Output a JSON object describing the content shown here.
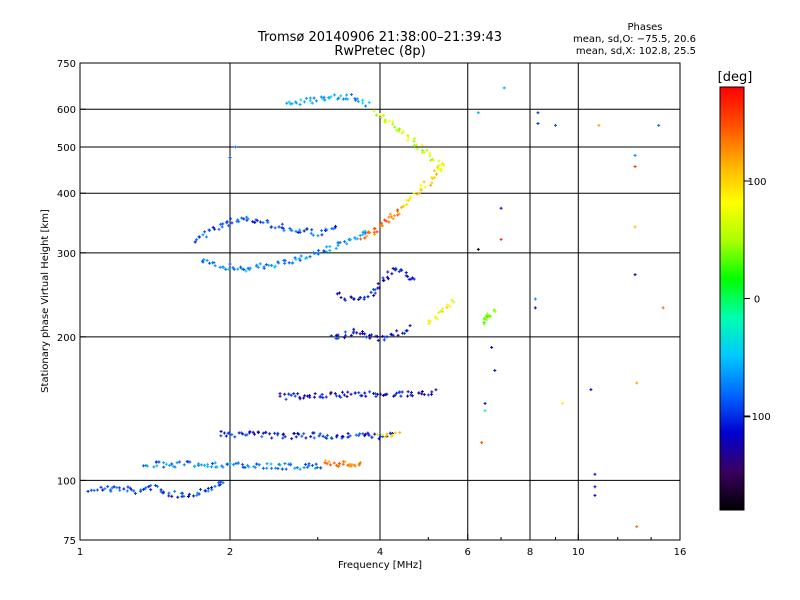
{
  "chart_data": {
    "type": "scatter",
    "title": "Tromsø 20140906 21:38:00–21:39:43",
    "subtitle": "RwPretec (8p)",
    "xlabel": "Frequency [MHz]",
    "ylabel": "Stationary phase Virtual Height [km]",
    "x_scale": "log",
    "y_scale": "log",
    "xlim": [
      1,
      16
    ],
    "ylim": [
      75,
      750
    ],
    "x_ticks": [
      1,
      2,
      4,
      6,
      8,
      10,
      16
    ],
    "x_tick_labels": [
      "1",
      "2",
      "4",
      "6",
      "8",
      "10",
      "16"
    ],
    "y_ticks": [
      75,
      100,
      200,
      300,
      400,
      500,
      600,
      750
    ],
    "y_tick_labels": [
      "75",
      "100",
      "200",
      "300",
      "400",
      "500",
      "600",
      "750"
    ],
    "grid": true,
    "phases_info": {
      "heading": "Phases",
      "line1": "mean, sd,O: −75.5, 20.6",
      "line2": "mean, sd,X: 102.8, 25.5"
    },
    "colorbar": {
      "label": "[deg]",
      "range": [
        -180,
        180
      ],
      "tick_values": [
        100,
        0,
        -100
      ],
      "tick_labels": [
        "100",
        "0",
        "−100"
      ],
      "colormap": [
        "#000000",
        "#3a0060",
        "#0000d0",
        "#0066ff",
        "#00c8ff",
        "#00ffb0",
        "#00ff00",
        "#aaff00",
        "#ffff00",
        "#ffb000",
        "#ff5000",
        "#ff0000"
      ]
    },
    "traces": [
      {
        "x": [
          1.05,
          1.2,
          1.3,
          1.4,
          1.5,
          1.6,
          1.7,
          1.8,
          1.9,
          1.95
        ],
        "y": [
          96,
          96,
          95,
          97,
          94,
          93,
          94,
          96,
          98,
          99
        ],
        "phase": -95
      },
      {
        "x": [
          1.35,
          1.5,
          1.7,
          1.9,
          2.1,
          2.4,
          2.7,
          3.0,
          3.1
        ],
        "y": [
          108,
          108,
          108,
          108,
          107,
          107,
          107,
          107,
          108
        ],
        "phase": -75
      },
      {
        "x": [
          3.1,
          3.2,
          3.3,
          3.4,
          3.5,
          3.6,
          3.7
        ],
        "y": [
          110,
          109,
          108,
          108,
          108,
          108,
          108
        ],
        "phase": 130
      },
      {
        "x": [
          1.75,
          1.9,
          2.1,
          2.4,
          2.7,
          3.0,
          3.3,
          3.5,
          3.7,
          3.8
        ],
        "y": [
          288,
          282,
          278,
          282,
          290,
          300,
          310,
          320,
          330,
          335
        ],
        "phase": -70
      },
      {
        "x": [
          3.7,
          3.8,
          3.9,
          4.0,
          4.1,
          4.2,
          4.3,
          4.4
        ],
        "y": [
          325,
          328,
          332,
          338,
          345,
          355,
          362,
          370
        ],
        "phase": 140
      },
      {
        "x": [
          4.4,
          4.6,
          4.8,
          5.0,
          5.2,
          5.3,
          5.4
        ],
        "y": [
          375,
          390,
          405,
          420,
          440,
          455,
          465
        ],
        "phase": 100
      },
      {
        "x": [
          1.7,
          1.9,
          2.1,
          2.4,
          2.7,
          3.0,
          3.3
        ],
        "y": [
          320,
          340,
          355,
          345,
          335,
          330,
          340
        ],
        "phase": -90
      },
      {
        "x": [
          2.6,
          2.9,
          3.2,
          3.5,
          3.8
        ],
        "y": [
          615,
          625,
          640,
          635,
          610
        ],
        "phase": -60
      },
      {
        "x": [
          3.9,
          4.2,
          4.6,
          5.0,
          5.4
        ],
        "y": [
          590,
          560,
          520,
          480,
          445
        ],
        "phase": 60
      },
      {
        "x": [
          3.2,
          3.4,
          3.6,
          3.8,
          4.0,
          4.2,
          4.4,
          4.6
        ],
        "y": [
          200,
          202,
          205,
          200,
          198,
          200,
          205,
          210
        ],
        "phase": -110
      },
      {
        "x": [
          3.3,
          3.5,
          3.7,
          3.9,
          4.1,
          4.3,
          4.5,
          4.7
        ],
        "y": [
          245,
          240,
          238,
          250,
          265,
          280,
          270,
          260
        ],
        "phase": -115
      },
      {
        "x": [
          5.0,
          5.3,
          5.6
        ],
        "y": [
          215,
          225,
          240
        ],
        "phase": 80
      },
      {
        "x": [
          6.4,
          6.5,
          6.6,
          6.7,
          6.8
        ],
        "y": [
          215,
          218,
          220,
          222,
          230
        ],
        "phase": 30
      },
      {
        "x": [
          2.5,
          2.8,
          3.1,
          3.4,
          3.7,
          4.0,
          4.3,
          4.6,
          4.9,
          5.2
        ],
        "y": [
          150,
          150,
          151,
          151,
          152,
          152,
          152,
          152,
          153,
          153
        ],
        "phase": -115
      },
      {
        "x": [
          1.9,
          2.2,
          2.5,
          2.8,
          3.1,
          3.4,
          3.7,
          4.0,
          4.3
        ],
        "y": [
          125,
          125,
          124,
          124,
          124,
          124,
          124,
          124,
          124
        ],
        "phase": -105
      },
      {
        "x": [
          4.0,
          4.2,
          4.4
        ],
        "y": [
          124,
          124,
          125
        ],
        "phase": 90
      }
    ],
    "scattered_points": [
      {
        "x": 2.05,
        "y": 500,
        "phase": -80
      },
      {
        "x": 2.0,
        "y": 475,
        "phase": -90
      },
      {
        "x": 6.3,
        "y": 305,
        "phase": -180
      },
      {
        "x": 7.0,
        "y": 320,
        "phase": 160
      },
      {
        "x": 7.0,
        "y": 372,
        "phase": -110
      },
      {
        "x": 8.3,
        "y": 590,
        "phase": -100
      },
      {
        "x": 8.3,
        "y": 560,
        "phase": -100
      },
      {
        "x": 9.0,
        "y": 555,
        "phase": -90
      },
      {
        "x": 11.0,
        "y": 555,
        "phase": 120
      },
      {
        "x": 13.0,
        "y": 480,
        "phase": -70
      },
      {
        "x": 13.0,
        "y": 270,
        "phase": -120
      },
      {
        "x": 13.0,
        "y": 455,
        "phase": 160
      },
      {
        "x": 13.0,
        "y": 340,
        "phase": 110
      },
      {
        "x": 14.5,
        "y": 555,
        "phase": -80
      },
      {
        "x": 14.8,
        "y": 230,
        "phase": 140
      },
      {
        "x": 13.1,
        "y": 160,
        "phase": 120
      },
      {
        "x": 10.8,
        "y": 103,
        "phase": -110
      },
      {
        "x": 10.8,
        "y": 97,
        "phase": -110
      },
      {
        "x": 10.8,
        "y": 93,
        "phase": -110
      },
      {
        "x": 13.1,
        "y": 80,
        "phase": 140
      },
      {
        "x": 6.4,
        "y": 120,
        "phase": 150
      },
      {
        "x": 6.5,
        "y": 140,
        "phase": -20
      },
      {
        "x": 6.5,
        "y": 145,
        "phase": -110
      },
      {
        "x": 9.3,
        "y": 145,
        "phase": 90
      },
      {
        "x": 10.6,
        "y": 155,
        "phase": -120
      },
      {
        "x": 6.8,
        "y": 170,
        "phase": -110
      },
      {
        "x": 6.7,
        "y": 190,
        "phase": -120
      },
      {
        "x": 8.2,
        "y": 240,
        "phase": -70
      },
      {
        "x": 8.2,
        "y": 230,
        "phase": -110
      },
      {
        "x": 6.3,
        "y": 590,
        "phase": -60
      },
      {
        "x": 7.1,
        "y": 665,
        "phase": -60
      }
    ]
  }
}
